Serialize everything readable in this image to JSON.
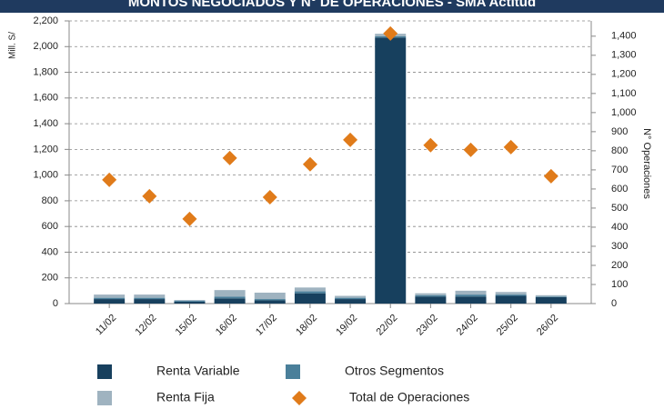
{
  "chart_data": {
    "type": "bar",
    "stacked": true,
    "title": "MONTOS NEGOCIADOS Y N° DE OPERACIONES - SMA Actitud",
    "ylabel": "Mill. S/",
    "y2label": "N° Operaciones",
    "categories": [
      "11/02",
      "12/02",
      "15/02",
      "16/02",
      "17/02",
      "18/02",
      "19/02",
      "22/02",
      "23/02",
      "24/02",
      "25/02",
      "26/02"
    ],
    "series": [
      {
        "name": "Renta Variable",
        "color": "#17405e",
        "values": [
          35,
          35,
          15,
          40,
          25,
          80,
          35,
          2070,
          55,
          55,
          60,
          50
        ]
      },
      {
        "name": "Otros Segmentos",
        "color": "#4a7f9a",
        "values": [
          10,
          10,
          8,
          15,
          10,
          15,
          10,
          10,
          10,
          15,
          10,
          5
        ]
      },
      {
        "name": "Renta Fija",
        "color": "#9fb3c0",
        "values": [
          25,
          25,
          5,
          50,
          50,
          30,
          15,
          20,
          15,
          30,
          20,
          10
        ]
      },
      {
        "name": "Total de Operaciones",
        "color": "#e07b1a",
        "type": "scatter",
        "axis": "y2",
        "values": [
          648,
          562,
          443,
          762,
          557,
          729,
          857,
          1414,
          829,
          805,
          819,
          667
        ]
      }
    ],
    "ylim": [
      0,
      2200
    ],
    "yticks": [
      0,
      200,
      400,
      600,
      800,
      {
        "value": 1000,
        "label": "1,000"
      },
      {
        "value": 1200,
        "label": "1,200"
      },
      {
        "value": 1400,
        "label": "1,400"
      },
      {
        "value": 1600,
        "label": "1,600"
      },
      {
        "value": 1800,
        "label": "1,800"
      },
      {
        "value": 2000,
        "label": "2,000"
      },
      {
        "value": 2200,
        "label": "2,200"
      }
    ],
    "y2lim": [
      0,
      1480
    ],
    "y2ticks": [
      0,
      100,
      200,
      300,
      400,
      500,
      600,
      700,
      800,
      900,
      {
        "value": 1000,
        "label": "1,000"
      },
      {
        "value": 1100,
        "label": "1,100"
      },
      {
        "value": 1200,
        "label": "1,200"
      },
      {
        "value": 1300,
        "label": "1,300"
      },
      {
        "value": 1400,
        "label": "1,400"
      }
    ],
    "grid": true
  }
}
